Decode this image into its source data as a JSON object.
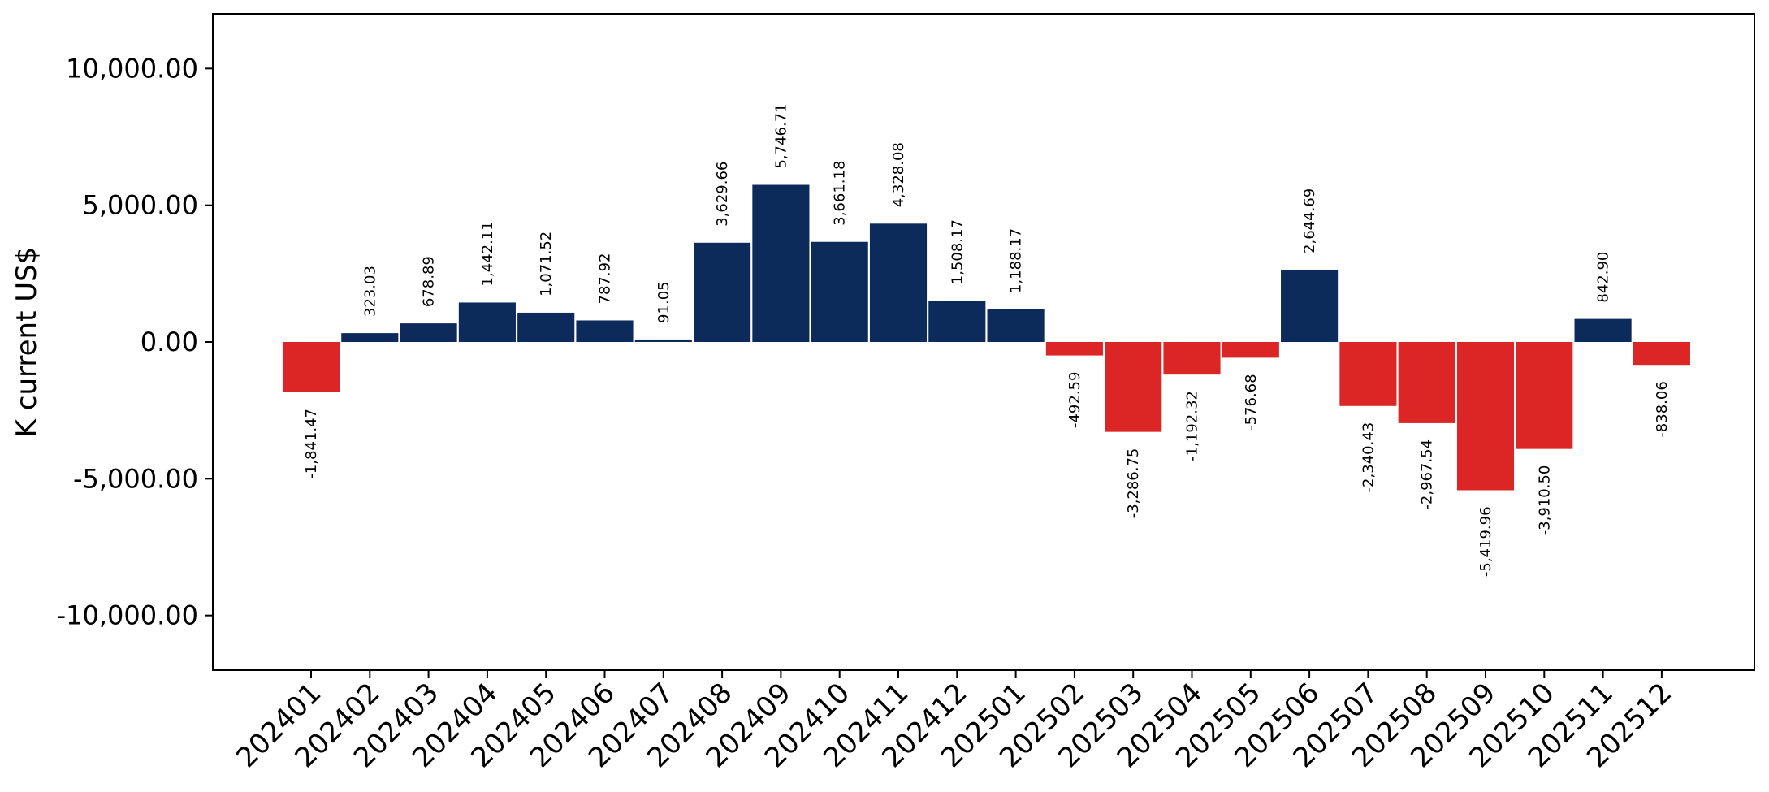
{
  "chart_data": {
    "type": "bar",
    "title": "",
    "xlabel": "",
    "ylabel": "K current US$",
    "categories": [
      "202401",
      "202402",
      "202403",
      "202404",
      "202405",
      "202406",
      "202407",
      "202408",
      "202409",
      "202410",
      "202411",
      "202412",
      "202501",
      "202502",
      "202503",
      "202504",
      "202505",
      "202506",
      "202507",
      "202508",
      "202509",
      "202510",
      "202511",
      "202512"
    ],
    "values": [
      -1841.47,
      323.03,
      678.89,
      1442.11,
      1071.52,
      787.92,
      91.05,
      3629.66,
      5746.71,
      3661.18,
      4328.08,
      1508.17,
      1188.17,
      -492.59,
      -3286.75,
      -1192.32,
      -576.68,
      2644.69,
      -2340.43,
      -2967.54,
      -5419.96,
      -3910.5,
      842.9,
      -838.06
    ],
    "data_labels": [
      "-1,841.47",
      "323.03",
      "678.89",
      "1,442.11",
      "1,071.52",
      "787.92",
      "91.05",
      "3,629.66",
      "5,746.71",
      "3,661.18",
      "4,328.08",
      "1,508.17",
      "1,188.17",
      "-492.59",
      "-3,286.75",
      "-1,192.32",
      "-576.68",
      "2,644.69",
      "-2,340.43",
      "-2,967.54",
      "-5,419.96",
      "-3,910.50",
      "842.90",
      "-838.06"
    ],
    "ylim": [
      -12000,
      12000
    ],
    "yticks": [
      -10000,
      -5000,
      0,
      5000,
      10000
    ],
    "ytick_labels": [
      "-10,000.00",
      "-5,000.00",
      "0.00",
      "5,000.00",
      "10,000.00"
    ],
    "grid": false,
    "legend": "none",
    "colors": {
      "positive": "#0d2b5a",
      "negative": "#dc2626",
      "axis": "#000000"
    }
  }
}
